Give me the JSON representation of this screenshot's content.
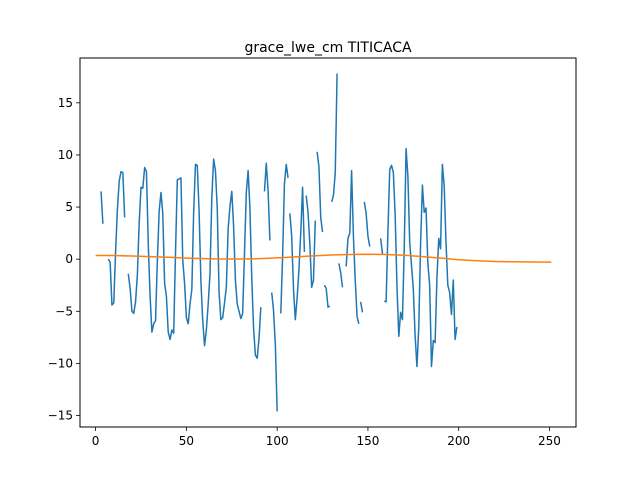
{
  "chart_data": {
    "type": "line",
    "title": "grace_lwe_cm TITICACA",
    "xlabel": "",
    "ylabel": "",
    "xlim": [
      -8.6,
      264.6
    ],
    "ylim": [
      -16.1,
      19.3
    ],
    "xticks": [
      0,
      50,
      100,
      150,
      200,
      250
    ],
    "yticks": [
      -15,
      -10,
      -5,
      0,
      5,
      10,
      15
    ],
    "grid": false,
    "series": [
      {
        "color": "#1f77b4",
        "segments": [
          [
            [
              3,
              6.5
            ],
            [
              4,
              3.4
            ]
          ],
          [
            [
              7,
              0.0
            ],
            [
              8,
              -0.3
            ],
            [
              9,
              -4.4
            ],
            [
              10,
              -4.2
            ],
            [
              11,
              0.7
            ],
            [
              12,
              4.8
            ],
            [
              13,
              7.5
            ],
            [
              14,
              8.4
            ],
            [
              15,
              8.3
            ],
            [
              16,
              4.0
            ]
          ],
          [
            [
              18,
              -1.4
            ],
            [
              19,
              -2.8
            ],
            [
              20,
              -5.0
            ],
            [
              21,
              -5.2
            ],
            [
              22,
              -4.1
            ],
            [
              23,
              -1.5
            ],
            [
              24,
              3.5
            ],
            [
              25,
              6.9
            ],
            [
              26,
              6.8
            ],
            [
              27,
              8.8
            ],
            [
              28,
              8.4
            ],
            [
              29,
              1.5
            ],
            [
              30,
              -3.5
            ],
            [
              31,
              -7.0
            ],
            [
              32,
              -6.2
            ],
            [
              33,
              -5.9
            ],
            [
              34,
              -0.2
            ],
            [
              35,
              4.6
            ],
            [
              36,
              6.4
            ],
            [
              37,
              4.4
            ],
            [
              38,
              -2.3
            ],
            [
              39,
              -3.6
            ],
            [
              40,
              -7.0
            ],
            [
              41,
              -7.7
            ],
            [
              42,
              -6.8
            ],
            [
              43,
              -7.1
            ],
            [
              44,
              0.6
            ],
            [
              45,
              7.6
            ],
            [
              46,
              7.7
            ],
            [
              47,
              7.8
            ],
            [
              48,
              -0.1
            ],
            [
              49,
              -2.3
            ],
            [
              50,
              -5.6
            ],
            [
              51,
              -6.2
            ],
            [
              52,
              -4.3
            ],
            [
              53,
              -2.9
            ],
            [
              54,
              4.5
            ],
            [
              55,
              9.1
            ],
            [
              56,
              9.0
            ],
            [
              57,
              4.6
            ],
            [
              58,
              -2.1
            ],
            [
              59,
              -5.9
            ],
            [
              60,
              -8.3
            ],
            [
              61,
              -6.8
            ],
            [
              62,
              -4.3
            ],
            [
              63,
              -1.4
            ],
            [
              64,
              5.9
            ],
            [
              65,
              9.6
            ],
            [
              66,
              8.5
            ],
            [
              67,
              4.9
            ],
            [
              68,
              -3.2
            ],
            [
              69,
              -5.8
            ],
            [
              70,
              -5.6
            ],
            [
              71,
              -4.2
            ],
            [
              72,
              -2.7
            ],
            [
              73,
              2.9
            ],
            [
              74,
              5.1
            ],
            [
              75,
              6.5
            ],
            [
              76,
              3.2
            ],
            [
              77,
              -2.0
            ],
            [
              78,
              -4.3
            ],
            [
              79,
              -5.0
            ],
            [
              80,
              -5.7
            ],
            [
              81,
              -5.2
            ],
            [
              82,
              0.6
            ],
            [
              83,
              6.4
            ],
            [
              84,
              8.5
            ],
            [
              85,
              4.9
            ],
            [
              86,
              -1.8
            ],
            [
              87,
              -6.6
            ],
            [
              88,
              -9.2
            ],
            [
              89,
              -9.5
            ],
            [
              90,
              -7.6
            ],
            [
              91,
              -4.6
            ]
          ],
          [
            [
              93,
              6.5
            ],
            [
              94,
              9.2
            ],
            [
              95,
              6.6
            ],
            [
              96,
              1.8
            ]
          ],
          [
            [
              97,
              -3.2
            ],
            [
              98,
              -4.9
            ],
            [
              99,
              -8.2
            ],
            [
              100,
              -14.6
            ]
          ],
          [
            [
              102,
              -5.2
            ],
            [
              103,
              0.3
            ],
            [
              104,
              7.2
            ],
            [
              105,
              9.1
            ],
            [
              106,
              7.8
            ]
          ],
          [
            [
              107,
              4.4
            ],
            [
              108,
              2.2
            ],
            [
              109,
              -2.9
            ],
            [
              110,
              -5.8
            ],
            [
              111,
              -3.7
            ],
            [
              112,
              -1.0
            ],
            [
              113,
              2.6
            ],
            [
              114,
              6.9
            ],
            [
              115,
              0.7
            ]
          ],
          [
            [
              116,
              6.1
            ],
            [
              117,
              4.5
            ],
            [
              118,
              1.5
            ],
            [
              119,
              -2.7
            ],
            [
              120,
              -2.0
            ],
            [
              121,
              3.7
            ]
          ],
          [
            [
              122,
              10.3
            ],
            [
              123,
              8.9
            ],
            [
              124,
              4.0
            ],
            [
              125,
              2.6
            ]
          ],
          [
            [
              126,
              -2.5
            ],
            [
              127,
              -2.8
            ],
            [
              128,
              -4.6
            ],
            [
              129,
              -4.5
            ]
          ],
          [
            [
              130,
              5.5
            ],
            [
              131,
              6.1
            ],
            [
              132,
              8.3
            ],
            [
              133,
              17.8
            ]
          ],
          [
            [
              134,
              -0.4
            ],
            [
              135,
              -1.3
            ],
            [
              136,
              -2.7
            ]
          ],
          [
            [
              138,
              -0.7
            ],
            [
              139,
              2.0
            ],
            [
              140,
              2.5
            ],
            [
              141,
              8.5
            ],
            [
              142,
              2.2
            ],
            [
              143,
              -2.0
            ],
            [
              144,
              -5.5
            ],
            [
              145,
              -6.2
            ]
          ],
          [
            [
              146,
              -4.1
            ],
            [
              147,
              -5.1
            ]
          ],
          [
            [
              148,
              5.5
            ],
            [
              149,
              4.4
            ],
            [
              150,
              2.2
            ],
            [
              151,
              1.2
            ]
          ],
          [
            [
              157,
              2.0
            ],
            [
              158,
              0.5
            ]
          ],
          [
            [
              159,
              -4.0
            ],
            [
              160,
              -4.1
            ],
            [
              161,
              2.6
            ],
            [
              162,
              8.6
            ],
            [
              163,
              9.0
            ],
            [
              164,
              8.3
            ],
            [
              165,
              4.2
            ],
            [
              166,
              -2.7
            ],
            [
              167,
              -7.4
            ],
            [
              168,
              -5.1
            ],
            [
              169,
              -5.8
            ],
            [
              170,
              1.1
            ],
            [
              171,
              10.6
            ],
            [
              172,
              8.0
            ],
            [
              173,
              1.6
            ],
            [
              174,
              -0.6
            ],
            [
              175,
              -2.9
            ],
            [
              176,
              -7.4
            ],
            [
              177,
              -10.3
            ],
            [
              178,
              -6.5
            ],
            [
              179,
              1.5
            ],
            [
              180,
              7.1
            ],
            [
              181,
              4.5
            ],
            [
              182,
              4.9
            ],
            [
              183,
              -0.4
            ],
            [
              184,
              -2.5
            ],
            [
              185,
              -10.3
            ],
            [
              186,
              -7.8
            ],
            [
              187,
              -8.0
            ],
            [
              188,
              -1.8
            ],
            [
              189,
              2.0
            ],
            [
              190,
              1.0
            ],
            [
              191,
              9.1
            ],
            [
              192,
              7.0
            ],
            [
              193,
              1.6
            ],
            [
              194,
              -2.5
            ],
            [
              195,
              -3.2
            ],
            [
              196,
              -5.3
            ],
            [
              197,
              -2.0
            ],
            [
              198,
              -7.7
            ],
            [
              199,
              -6.5
            ]
          ]
        ]
      },
      {
        "color": "#ff7f0e",
        "segments": [
          [
            [
              0,
              0.35
            ],
            [
              10,
              0.35
            ],
            [
              20,
              0.3
            ],
            [
              30,
              0.25
            ],
            [
              40,
              0.18
            ],
            [
              50,
              0.1
            ],
            [
              60,
              0.05
            ],
            [
              70,
              0.02
            ],
            [
              80,
              0.02
            ],
            [
              90,
              0.05
            ],
            [
              100,
              0.12
            ],
            [
              110,
              0.22
            ],
            [
              120,
              0.32
            ],
            [
              130,
              0.4
            ],
            [
              140,
              0.45
            ],
            [
              150,
              0.47
            ],
            [
              160,
              0.45
            ],
            [
              170,
              0.38
            ],
            [
              180,
              0.25
            ],
            [
              190,
              0.1
            ],
            [
              200,
              -0.05
            ],
            [
              210,
              -0.15
            ],
            [
              220,
              -0.22
            ],
            [
              230,
              -0.25
            ],
            [
              240,
              -0.27
            ],
            [
              251,
              -0.28
            ]
          ]
        ]
      }
    ]
  }
}
